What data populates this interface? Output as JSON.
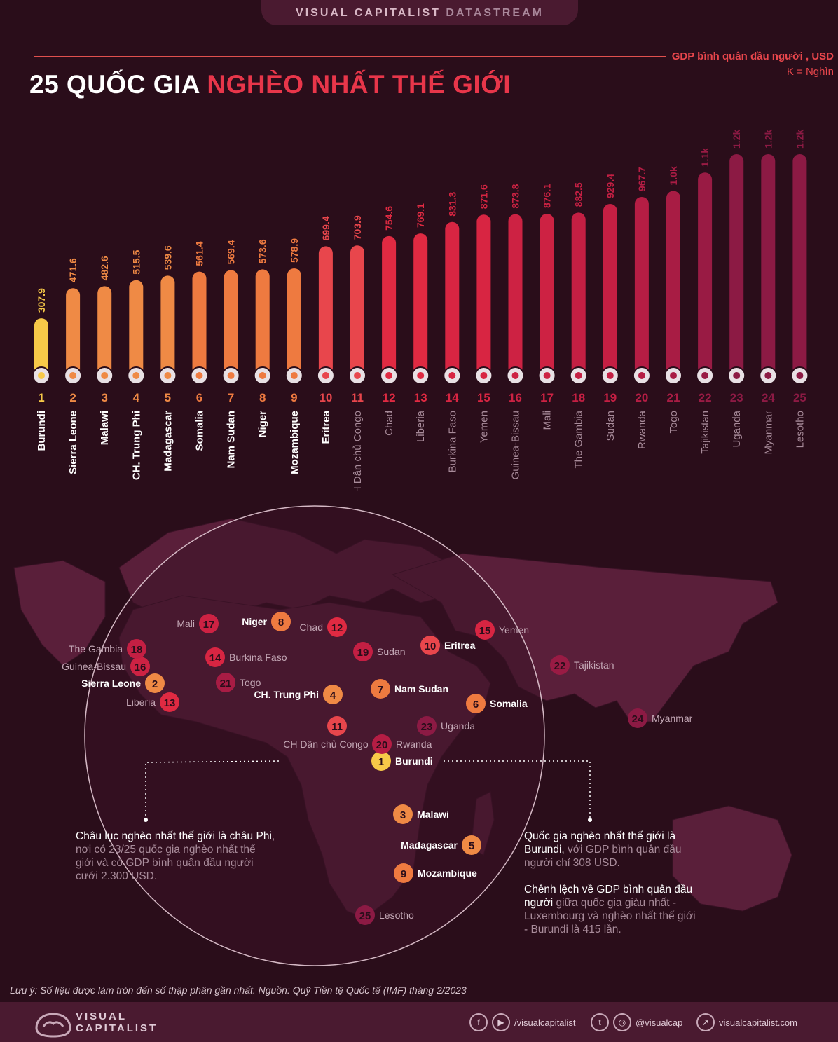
{
  "header": {
    "brand": "VISUAL CAPITALIST",
    "brand_suffix": "DATASTREAM"
  },
  "title": {
    "part1": "25 QUỐC GIA",
    "part2": "NGHÈO NHẤT THẾ GIỚI"
  },
  "legend": {
    "line1": "GDP bình quân đầu người , USD",
    "line2": "K = Nghìn"
  },
  "chart_data": {
    "type": "bar",
    "ylabel": "GDP bình quân đầu người , USD",
    "ylim": [
      0,
      1300
    ],
    "categories": [
      "Burundi",
      "Sierra Leone",
      "Malawi",
      "CH. Trung Phi",
      "Madagascar",
      "Somalia",
      "Nam Sudan",
      "Niger",
      "Mozambique",
      "Eritrea",
      "CH Dân chủ Congo",
      "Chad",
      "Liberia",
      "Burkina Faso",
      "Yemen",
      "Guinea-Bissau",
      "Mali",
      "The Gambia",
      "Sudan",
      "Rwanda",
      "Togo",
      "Tajikistan",
      "Uganda",
      "Myanmar",
      "Lesotho"
    ],
    "ranks": [
      "1",
      "2",
      "3",
      "4",
      "5",
      "6",
      "7",
      "8",
      "9",
      "10",
      "11",
      "12",
      "13",
      "14",
      "15",
      "16",
      "17",
      "18",
      "19",
      "20",
      "21",
      "22",
      "23",
      "24",
      "25"
    ],
    "values": [
      307.9,
      471.6,
      482.6,
      515.5,
      539.6,
      561.4,
      569.4,
      573.6,
      578.9,
      699.4,
      703.9,
      754.6,
      769.1,
      831.3,
      871.6,
      873.8,
      876.1,
      882.5,
      929.4,
      967.7,
      1000,
      1100,
      1200,
      1200,
      1200
    ],
    "value_labels": [
      "307.9",
      "471.6",
      "482.6",
      "515.5",
      "539.6",
      "561.4",
      "569.4",
      "573.6",
      "578.9",
      "699.4",
      "703.9",
      "754.6",
      "769.1",
      "831.3",
      "871.6",
      "873.8",
      "876.1",
      "882.5",
      "929.4",
      "967.7",
      "1.0k",
      "1.1k",
      "1.2k",
      "1.2k",
      "1.2k"
    ],
    "colors": [
      "#f7c948",
      "#ef8a45",
      "#ef8a45",
      "#ef8a45",
      "#ef8a45",
      "#ee7a40",
      "#ee7a40",
      "#ee7a40",
      "#ee7a40",
      "#e8464c",
      "#e8464c",
      "#e02a42",
      "#e02a42",
      "#d82542",
      "#d82542",
      "#cd2243",
      "#cd2243",
      "#c41f43",
      "#c41f43",
      "#b51d44",
      "#a81c44",
      "#991b44",
      "#8c1a44",
      "#8c1a44",
      "#8c1a44"
    ]
  },
  "map": {
    "markers": [
      {
        "rank": "1",
        "label": "Burundi"
      },
      {
        "rank": "2",
        "label": "Sierra Leone"
      },
      {
        "rank": "3",
        "label": "Malawi"
      },
      {
        "rank": "4",
        "label": "CH. Trung Phi"
      },
      {
        "rank": "5",
        "label": "Madagascar"
      },
      {
        "rank": "6",
        "label": "Somalia"
      },
      {
        "rank": "7",
        "label": "Nam Sudan"
      },
      {
        "rank": "8",
        "label": "Niger"
      },
      {
        "rank": "9",
        "label": "Mozambique"
      },
      {
        "rank": "10",
        "label": "Eritrea"
      },
      {
        "rank": "11",
        "label": "CH Dân chủ Congo"
      },
      {
        "rank": "12",
        "label": "Chad"
      },
      {
        "rank": "13",
        "label": "Liberia"
      },
      {
        "rank": "14",
        "label": "Burkina Faso"
      },
      {
        "rank": "15",
        "label": "Yemen"
      },
      {
        "rank": "16",
        "label": "Guinea-Bissau"
      },
      {
        "rank": "17",
        "label": "Mali"
      },
      {
        "rank": "18",
        "label": "The Gambia"
      },
      {
        "rank": "19",
        "label": "Sudan"
      },
      {
        "rank": "20",
        "label": "Rwanda"
      },
      {
        "rank": "21",
        "label": "Togo"
      },
      {
        "rank": "22",
        "label": "Tajikistan"
      },
      {
        "rank": "23",
        "label": "Uganda"
      },
      {
        "rank": "24",
        "label": "Myanmar"
      },
      {
        "rank": "25",
        "label": "Lesotho"
      }
    ]
  },
  "annotations": {
    "left_bold": "Châu lục nghèo nhất thế giới là châu Phi",
    "left_rest": ", nơi có 23/25 quốc gia nghèo nhất thế giới và có GDP bình quân đầu người cưới 2.300 USD.",
    "right1_bold": "Quốc gia nghèo nhất thế giới là Burundi,",
    "right1_rest": " với GDP bình quân đầu người chỉ 308 USD.",
    "right2_bold": "Chênh lệch về GDP bình quân đầu người",
    "right2_rest": " giữa quốc gia giàu nhất - Luxembourg và nghèo nhất thế giới - Burundi là 415 lần."
  },
  "note": "Lưu ý: Số liệu được làm tròn đến số thập phân gần nhất. Nguồn: Quỹ Tiền tệ Quốc tế (IMF) tháng 2/2023",
  "footer": {
    "logo_line1": "VISUAL",
    "logo_line2": "CAPITALIST",
    "social1": "/visualcapitalist",
    "social2": "@visualcap",
    "website": "visualcapitalist.com"
  },
  "icons": [
    "logo-icon",
    "facebook-icon",
    "youtube-icon",
    "twitter-icon",
    "instagram-icon",
    "cursor-icon"
  ]
}
